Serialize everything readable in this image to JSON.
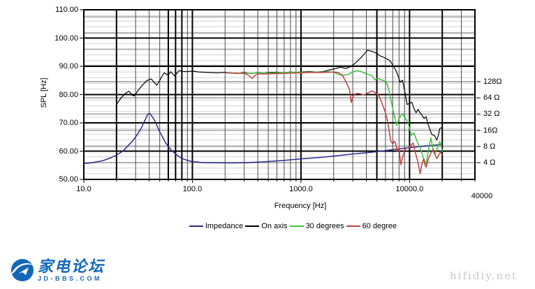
{
  "watermarks": {
    "forum_name": "家电论坛",
    "forum_domain": "JD-BBS.COM",
    "forum_color": "#1467b8",
    "site_url": "hifidiy.net"
  },
  "chart_data": {
    "type": "line",
    "title": "",
    "x_axis": {
      "label": "Frequency [Hz]",
      "scale": "log",
      "min": 10,
      "max": 40000,
      "ticks": [
        {
          "value": 10,
          "label": "10.0"
        },
        {
          "value": 100,
          "label": "100.0"
        },
        {
          "value": 1000,
          "label": "1000.0"
        },
        {
          "value": 10000,
          "label": "10000.0"
        },
        {
          "value": 40000,
          "label": "40000"
        }
      ],
      "emphasis_gridlines_hz": [
        20,
        60,
        70,
        80,
        5000,
        20000
      ]
    },
    "y_axis": {
      "label": "SPL [Hz]",
      "scale": "linear",
      "min": 50,
      "max": 110,
      "major_step": 10,
      "minor_step": 2,
      "ticks": [
        {
          "value": 110,
          "label": "110.00"
        },
        {
          "value": 100,
          "label": "100.00"
        },
        {
          "value": 90,
          "label": "90.00"
        },
        {
          "value": 80,
          "label": "80.00"
        },
        {
          "value": 70,
          "label": "70.00"
        },
        {
          "value": 60,
          "label": "60.00"
        },
        {
          "value": 50,
          "label": "50.00"
        }
      ]
    },
    "z_axis": {
      "label": "Impedance",
      "unit": "ohm",
      "scale": "log2",
      "ticks": [
        {
          "value": 128,
          "label": "128Ω"
        },
        {
          "value": 64,
          "label": "64 Ω"
        },
        {
          "value": 32,
          "label": "32 Ω"
        },
        {
          "value": 16,
          "label": "16Ω"
        },
        {
          "value": 8,
          "label": "8 Ω"
        },
        {
          "value": 4,
          "label": "4 Ω"
        }
      ]
    },
    "grid": {
      "minor_color": "#d2d2d2",
      "ohm_line_color": "#b2b2b2",
      "major_color": "#000000"
    },
    "legend": {
      "position": "bottom"
    },
    "series": [
      {
        "name": "Impedance",
        "color": "#2b2b8c",
        "axis": "impedance",
        "unit": "ohm",
        "points": [
          [
            10,
            3.85
          ],
          [
            12,
            4.0
          ],
          [
            15,
            4.35
          ],
          [
            18,
            5.0
          ],
          [
            20,
            5.5
          ],
          [
            23,
            6.6
          ],
          [
            25,
            7.9
          ],
          [
            28,
            10
          ],
          [
            30,
            12
          ],
          [
            32,
            14.5
          ],
          [
            34,
            18
          ],
          [
            36,
            23
          ],
          [
            38,
            29
          ],
          [
            39,
            32
          ],
          [
            40,
            33
          ],
          [
            41,
            32
          ],
          [
            43,
            28
          ],
          [
            45,
            24
          ],
          [
            48,
            18
          ],
          [
            50,
            15
          ],
          [
            53,
            12
          ],
          [
            56,
            9.8
          ],
          [
            60,
            7.9
          ],
          [
            65,
            6.6
          ],
          [
            70,
            5.8
          ],
          [
            75,
            5.2
          ],
          [
            80,
            4.8
          ],
          [
            90,
            4.4
          ],
          [
            100,
            4.2
          ],
          [
            120,
            4.05
          ],
          [
            150,
            4.0
          ],
          [
            200,
            3.95
          ],
          [
            250,
            3.95
          ],
          [
            300,
            4.0
          ],
          [
            400,
            4.1
          ],
          [
            500,
            4.2
          ],
          [
            700,
            4.4
          ],
          [
            1000,
            4.7
          ],
          [
            1500,
            5.0
          ],
          [
            2000,
            5.3
          ],
          [
            2500,
            5.55
          ],
          [
            3000,
            5.8
          ],
          [
            4000,
            6.1
          ],
          [
            5000,
            6.4
          ],
          [
            6000,
            6.7
          ],
          [
            7000,
            7.0
          ],
          [
            8500,
            7.3
          ],
          [
            10000,
            7.6
          ],
          [
            12000,
            7.9
          ],
          [
            15000,
            8.3
          ],
          [
            18000,
            8.55
          ],
          [
            20000,
            8.7
          ]
        ]
      },
      {
        "name": "On axis",
        "color": "#000000",
        "axis": "spl",
        "unit": "dB",
        "points": [
          [
            20,
            76.5
          ],
          [
            22,
            78.8
          ],
          [
            24,
            80.3
          ],
          [
            26,
            81.2
          ],
          [
            28,
            79.8
          ],
          [
            29,
            79.5
          ],
          [
            31,
            81.0
          ],
          [
            33,
            82.4
          ],
          [
            36,
            84.0
          ],
          [
            38,
            84.9
          ],
          [
            40,
            85.3
          ],
          [
            42,
            85.5
          ],
          [
            44,
            84.5
          ],
          [
            47,
            83.3
          ],
          [
            50,
            85.0
          ],
          [
            53,
            86.8
          ],
          [
            55,
            87.7
          ],
          [
            58,
            87.2
          ],
          [
            60,
            86.9
          ],
          [
            63,
            88.1
          ],
          [
            66,
            87.3
          ],
          [
            69,
            86.5
          ],
          [
            72,
            87.6
          ],
          [
            76,
            88.5
          ],
          [
            82,
            88.2
          ],
          [
            88,
            88.1
          ],
          [
            100,
            88.3
          ],
          [
            115,
            88.0
          ],
          [
            130,
            87.9
          ],
          [
            150,
            87.8
          ],
          [
            170,
            87.7
          ],
          [
            200,
            87.9
          ],
          [
            230,
            87.6
          ],
          [
            260,
            87.5
          ],
          [
            300,
            87.8
          ],
          [
            350,
            87.4
          ],
          [
            400,
            87.8
          ],
          [
            450,
            87.6
          ],
          [
            500,
            87.8
          ],
          [
            600,
            87.9
          ],
          [
            700,
            87.7
          ],
          [
            800,
            88.0
          ],
          [
            900,
            87.8
          ],
          [
            1000,
            88.0
          ],
          [
            1200,
            88.2
          ],
          [
            1400,
            87.9
          ],
          [
            1600,
            88.1
          ],
          [
            1900,
            88.9
          ],
          [
            2100,
            89.2
          ],
          [
            2300,
            89.7
          ],
          [
            2600,
            89.2
          ],
          [
            2900,
            90.0
          ],
          [
            3200,
            91.3
          ],
          [
            3600,
            93.2
          ],
          [
            4100,
            95.7
          ],
          [
            4600,
            95.2
          ],
          [
            5000,
            94.5
          ],
          [
            5400,
            93.6
          ],
          [
            5700,
            93.3
          ],
          [
            6200,
            92.6
          ],
          [
            6600,
            92.0
          ],
          [
            7000,
            90.5
          ],
          [
            7500,
            88.4
          ],
          [
            7900,
            86.3
          ],
          [
            8200,
            84.3
          ],
          [
            8600,
            85.1
          ],
          [
            9000,
            81.5
          ],
          [
            9500,
            76.5
          ],
          [
            10000,
            76.9
          ],
          [
            10500,
            77.3
          ],
          [
            11000,
            75.0
          ],
          [
            11500,
            73.6
          ],
          [
            12000,
            74.8
          ],
          [
            12500,
            73.5
          ],
          [
            13000,
            72.8
          ],
          [
            13600,
            71.5
          ],
          [
            14200,
            72.2
          ],
          [
            14800,
            69.5
          ],
          [
            16000,
            65.9
          ],
          [
            17000,
            65.5
          ],
          [
            17800,
            63.9
          ],
          [
            18400,
            65.5
          ],
          [
            19000,
            68.0
          ],
          [
            20000,
            68.4
          ]
        ]
      },
      {
        "name": "30 degrees",
        "color": "#3fbf3f",
        "axis": "spl",
        "unit": "dB",
        "points": [
          [
            200,
            87.8
          ],
          [
            250,
            87.6
          ],
          [
            300,
            87.6
          ],
          [
            350,
            87.5
          ],
          [
            400,
            87.7
          ],
          [
            500,
            87.6
          ],
          [
            600,
            87.7
          ],
          [
            700,
            87.8
          ],
          [
            800,
            87.9
          ],
          [
            1000,
            87.9
          ],
          [
            1200,
            88.0
          ],
          [
            1500,
            87.8
          ],
          [
            1800,
            88.1
          ],
          [
            2000,
            87.9
          ],
          [
            2200,
            87.2
          ],
          [
            2400,
            86.8
          ],
          [
            2700,
            87.1
          ],
          [
            3000,
            88.0
          ],
          [
            3300,
            88.5
          ],
          [
            3600,
            88.1
          ],
          [
            3900,
            87.5
          ],
          [
            4200,
            87.1
          ],
          [
            4500,
            86.7
          ],
          [
            4800,
            85.2
          ],
          [
            5100,
            85.8
          ],
          [
            5400,
            85.3
          ],
          [
            5700,
            85.0
          ],
          [
            6100,
            84.6
          ],
          [
            6400,
            82.0
          ],
          [
            6700,
            78.5
          ],
          [
            7200,
            72.8
          ],
          [
            7600,
            69.1
          ],
          [
            8000,
            71.5
          ],
          [
            8600,
            73.3
          ],
          [
            9100,
            71.8
          ],
          [
            9700,
            70.1
          ],
          [
            10400,
            65.6
          ],
          [
            11000,
            66.4
          ],
          [
            11700,
            63.5
          ],
          [
            12500,
            61.1
          ],
          [
            13300,
            58.0
          ],
          [
            14200,
            55.3
          ],
          [
            15000,
            61.0
          ],
          [
            15700,
            64.7
          ],
          [
            16300,
            61.5
          ],
          [
            17000,
            58.9
          ],
          [
            18000,
            61.0
          ],
          [
            19000,
            63.4
          ],
          [
            19600,
            62.0
          ],
          [
            20000,
            59.7
          ]
        ]
      },
      {
        "name": "60 degree",
        "color": "#bf4040",
        "axis": "spl",
        "unit": "dB",
        "points": [
          [
            200,
            87.7
          ],
          [
            250,
            87.5
          ],
          [
            300,
            87.5
          ],
          [
            330,
            86.8
          ],
          [
            355,
            85.7
          ],
          [
            380,
            86.9
          ],
          [
            400,
            87.3
          ],
          [
            500,
            87.3
          ],
          [
            600,
            87.4
          ],
          [
            700,
            87.5
          ],
          [
            800,
            87.6
          ],
          [
            1000,
            87.7
          ],
          [
            1200,
            87.8
          ],
          [
            1500,
            87.8
          ],
          [
            1800,
            87.9
          ],
          [
            2000,
            88.0
          ],
          [
            2200,
            87.8
          ],
          [
            2400,
            86.9
          ],
          [
            2600,
            84.5
          ],
          [
            2800,
            81.7
          ],
          [
            2900,
            77.2
          ],
          [
            3000,
            79.0
          ],
          [
            3100,
            80.1
          ],
          [
            3300,
            80.4
          ],
          [
            3500,
            80.3
          ],
          [
            3700,
            80.0
          ],
          [
            3900,
            80.1
          ],
          [
            4200,
            80.7
          ],
          [
            4500,
            81.3
          ],
          [
            4700,
            81.0
          ],
          [
            4900,
            80.5
          ],
          [
            5200,
            79.7
          ],
          [
            5500,
            77.5
          ],
          [
            5900,
            74.4
          ],
          [
            6200,
            71.5
          ],
          [
            6500,
            67.0
          ],
          [
            6700,
            63.7
          ],
          [
            7000,
            62.5
          ],
          [
            7200,
            63.5
          ],
          [
            7400,
            63.0
          ],
          [
            7700,
            60.0
          ],
          [
            8000,
            61.3
          ],
          [
            8300,
            55.2
          ],
          [
            8700,
            58.5
          ],
          [
            9200,
            60.9
          ],
          [
            9700,
            61.2
          ],
          [
            10000,
            61.5
          ],
          [
            10800,
            62.9
          ],
          [
            11400,
            59.0
          ],
          [
            11900,
            56.4
          ],
          [
            12500,
            52.0
          ],
          [
            13000,
            55.5
          ],
          [
            13500,
            57.3
          ],
          [
            13900,
            55.0
          ],
          [
            14200,
            54.4
          ],
          [
            15000,
            57.5
          ],
          [
            15800,
            59.5
          ],
          [
            16500,
            60.6
          ],
          [
            17200,
            58.8
          ],
          [
            17800,
            57.3
          ],
          [
            18500,
            58.5
          ],
          [
            19300,
            59.8
          ],
          [
            20000,
            58.5
          ]
        ]
      }
    ]
  }
}
